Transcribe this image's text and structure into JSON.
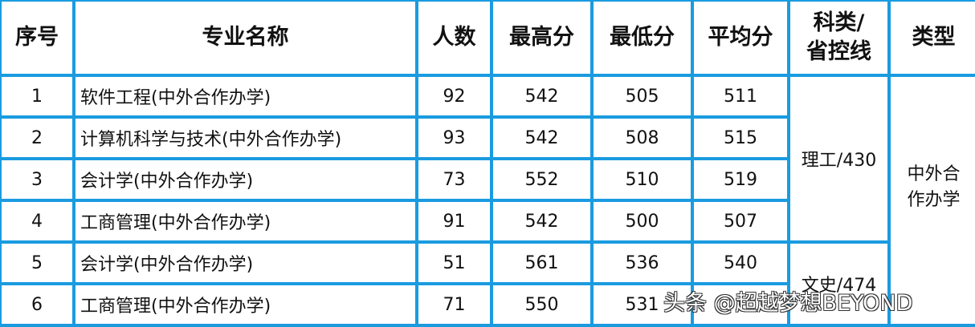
{
  "table": {
    "headers": [
      "序号",
      "专业名称",
      "人数",
      "最高分",
      "最低分",
      "平均分",
      "科类/省控线",
      "类型"
    ],
    "header_kelei_lines": [
      "科类/",
      "省控线"
    ],
    "rows": [
      {
        "no": "1",
        "name": "软件工程(中外合作办学)",
        "count": "92",
        "max": "542",
        "min": "505",
        "avg": "511"
      },
      {
        "no": "2",
        "name": "计算机科学与技术(中外合作办学)",
        "count": "93",
        "max": "542",
        "min": "508",
        "avg": "515"
      },
      {
        "no": "3",
        "name": "会计学(中外合作办学)",
        "count": "73",
        "max": "552",
        "min": "510",
        "avg": "519"
      },
      {
        "no": "4",
        "name": "工商管理(中外合作办学)",
        "count": "91",
        "max": "542",
        "min": "500",
        "avg": "507"
      },
      {
        "no": "5",
        "name": "会计学(中外合作办学)",
        "count": "51",
        "max": "561",
        "min": "536",
        "avg": "540"
      },
      {
        "no": "6",
        "name": "工商管理(中外合作办学)",
        "count": "71",
        "max": "550",
        "min": "531",
        "avg": ""
      }
    ],
    "kelei_ligong": "理工/430",
    "kelei_wenshi": "文史/474",
    "type_lines": [
      "中外合",
      "作办学"
    ]
  },
  "watermark": "头条 @超越梦想BEYOND",
  "colors": {
    "border": "#1a9be0"
  }
}
